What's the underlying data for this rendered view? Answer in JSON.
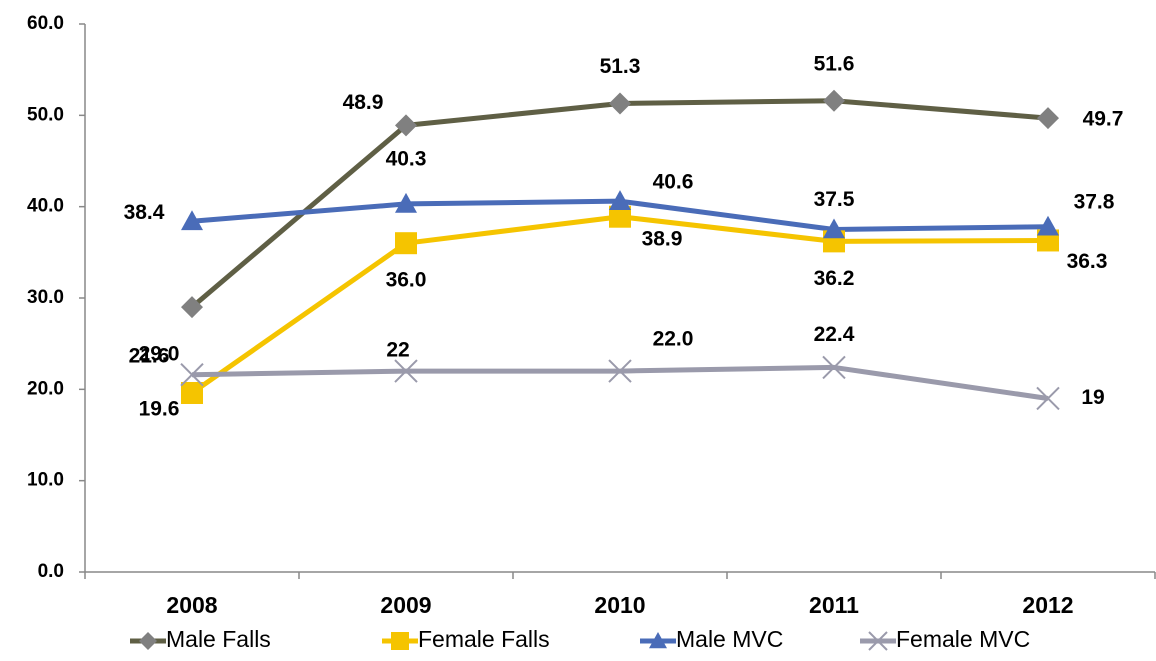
{
  "chart_data": {
    "type": "line",
    "categories": [
      "2008",
      "2009",
      "2010",
      "2011",
      "2012"
    ],
    "series": [
      {
        "name": "Male Falls",
        "color": "#5f5f45",
        "marker": "diamond",
        "marker_color": "#808080",
        "values": [
          29.0,
          48.9,
          51.3,
          51.6,
          49.7
        ],
        "value_labels": [
          "29.0",
          "48.9",
          "51.3",
          "51.6",
          "49.7"
        ]
      },
      {
        "name": "Female Falls",
        "color": "#f5c400",
        "marker": "square",
        "marker_color": "#f5c400",
        "values": [
          19.6,
          36.0,
          38.9,
          36.2,
          36.3
        ],
        "value_labels": [
          "19.6",
          "36.0",
          "38.9",
          "36.2",
          "36.3"
        ]
      },
      {
        "name": "Male MVC",
        "color": "#4a6cb8",
        "marker": "triangle",
        "marker_color": "#4a6cb8",
        "values": [
          38.4,
          40.3,
          40.6,
          37.5,
          37.8
        ],
        "value_labels": [
          "38.4",
          "40.3",
          "40.6",
          "37.5",
          "37.8"
        ]
      },
      {
        "name": "Female MVC",
        "color": "#9a9aab",
        "marker": "x",
        "marker_color": "#9a9aab",
        "values": [
          21.6,
          22,
          22.0,
          22.4,
          19
        ],
        "value_labels": [
          "21.6",
          "22",
          "22.0",
          "22.4",
          "19"
        ]
      }
    ],
    "ylim": [
      0,
      60
    ],
    "yticks": [
      {
        "value": 0,
        "label": "0.0"
      },
      {
        "value": 10,
        "label": "10.0"
      },
      {
        "value": 20,
        "label": "20.0"
      },
      {
        "value": 30,
        "label": "30.0"
      },
      {
        "value": 40,
        "label": "40.0"
      },
      {
        "value": 50,
        "label": "50.0"
      },
      {
        "value": 60,
        "label": "60.0"
      }
    ],
    "grid": false,
    "legend": "bottom"
  }
}
